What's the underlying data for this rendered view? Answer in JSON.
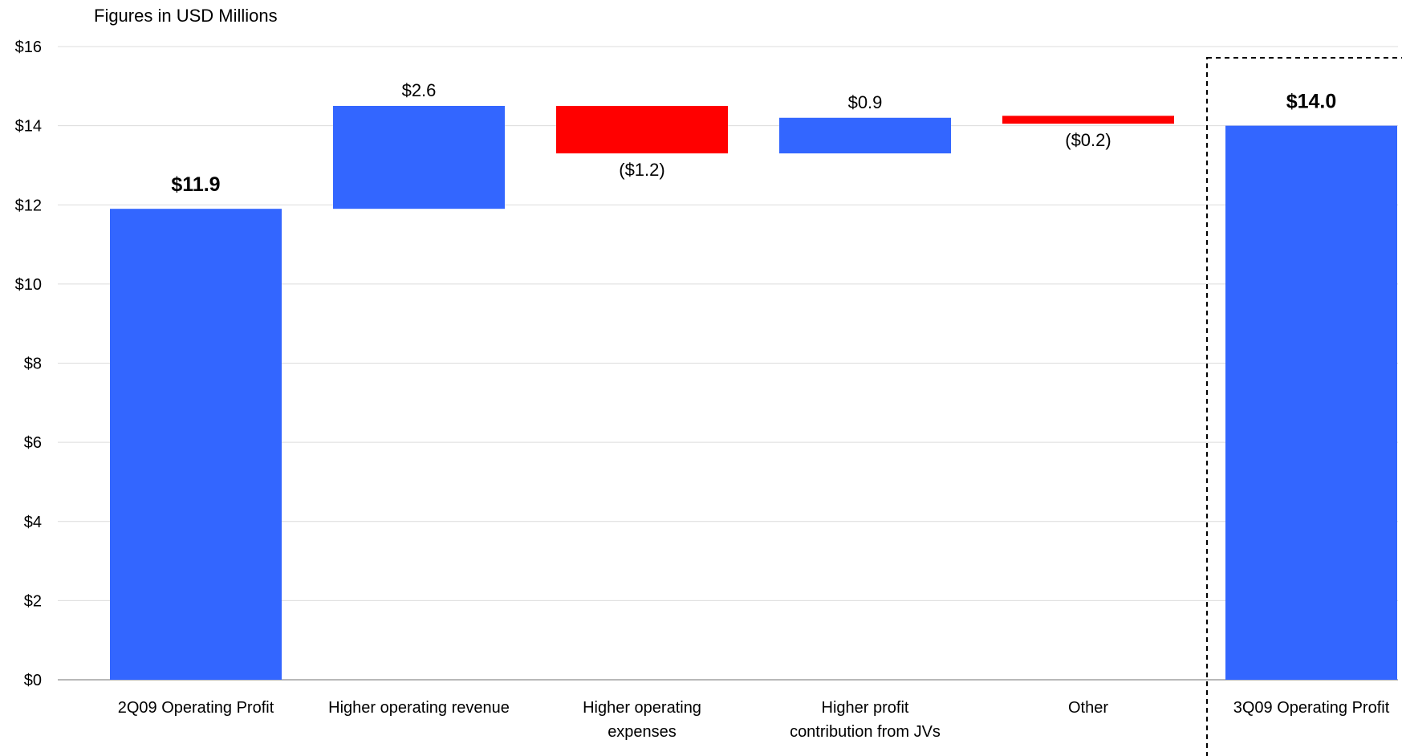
{
  "chart_data": {
    "type": "bar",
    "subtitle": "Figures in USD Millions",
    "categories": [
      "2Q09 Operating Profit",
      "Higher operating revenue",
      "Higher operating expenses",
      "Higher profit contribution from JVs",
      "Other",
      "3Q09 Operating Profit"
    ],
    "bars": [
      {
        "category": "2Q09 Operating Profit",
        "kind": "total",
        "start": 0,
        "end": 11.9,
        "label": "$11.9",
        "color": "#3366FF"
      },
      {
        "category": "Higher operating revenue",
        "kind": "increase",
        "start": 11.9,
        "end": 14.5,
        "label": "$2.6",
        "color": "#3366FF"
      },
      {
        "category": "Higher operating expenses",
        "kind": "decrease",
        "start": 14.5,
        "end": 13.3,
        "label": "($1.2)",
        "color": "#FF0000"
      },
      {
        "category": "Higher profit contribution from JVs",
        "kind": "increase",
        "start": 13.3,
        "end": 14.2,
        "label": "$0.9",
        "color": "#3366FF"
      },
      {
        "category": "Other",
        "kind": "decrease",
        "start": 14.25,
        "end": 14.05,
        "label": "($0.2)",
        "color": "#FF0000"
      },
      {
        "category": "3Q09 Operating Profit",
        "kind": "total",
        "start": 0,
        "end": 14.0,
        "label": "$14.0",
        "color": "#3366FF"
      }
    ],
    "ylim": [
      0,
      16
    ],
    "yticks": [
      0,
      2,
      4,
      6,
      8,
      10,
      12,
      14,
      16
    ],
    "ytick_labels": [
      "$0",
      "$2",
      "$4",
      "$6",
      "$8",
      "$10",
      "$12",
      "$14",
      "$16"
    ],
    "grid": true,
    "highlighted_category": "3Q09 Operating Profit"
  }
}
